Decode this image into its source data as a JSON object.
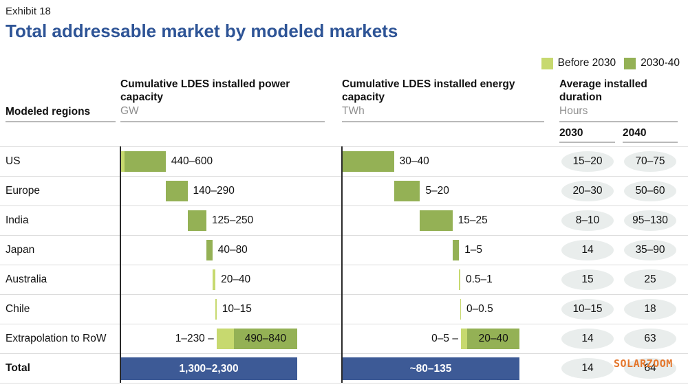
{
  "exhibit_label": "Exhibit 18",
  "title": "Total addressable market by modeled markets",
  "legend": [
    {
      "label": "Before 2030",
      "color": "#c7d96f"
    },
    {
      "label": "2030-40",
      "color": "#94b155"
    }
  ],
  "header": {
    "regions": "Modeled regions",
    "power_title": "Cumulative LDES installed power capacity",
    "power_unit": "GW",
    "energy_title": "Cumulative LDES installed energy capacity",
    "energy_unit": "TWh",
    "duration_title": "Average installed duration",
    "duration_unit": "Hours",
    "duration_year_1": "2030",
    "duration_year_2": "2040"
  },
  "watermark": "SOLARZOOM",
  "colors": {
    "title": "#2e5496",
    "before_2030": "#c7d96f",
    "period_2030_40": "#94b155",
    "total_bar": "#3d5a96",
    "oval_bg": "#e9edec",
    "watermark": "#e4762b"
  },
  "chart_data": {
    "type": "waterfall",
    "charts": {
      "power": {
        "title": "Cumulative LDES installed power capacity",
        "unit": "GW",
        "scale_max": 2345
      },
      "energy": {
        "title": "Cumulative LDES installed energy capacity",
        "unit": "TWh",
        "scale_max": 136.5
      }
    },
    "legend_entries": [
      "Before 2030",
      "2030-40"
    ],
    "rows": [
      {
        "region": "US",
        "power": {
          "label": "440–600",
          "start": 0,
          "segments": [
            {
              "period": "before_2030",
              "value": 55
            },
            {
              "period": "p2030_40",
              "value": 545
            }
          ]
        },
        "energy": {
          "label": "30–40",
          "start": 0,
          "segments": [
            {
              "period": "p2030_40",
              "value": 40
            }
          ]
        },
        "duration_2030": "15–20",
        "duration_2040": "70–75"
      },
      {
        "region": "Europe",
        "power": {
          "label": "140–290",
          "start": 600,
          "segments": [
            {
              "period": "p2030_40",
              "value": 290
            }
          ]
        },
        "energy": {
          "label": "5–20",
          "start": 40,
          "segments": [
            {
              "period": "p2030_40",
              "value": 20
            }
          ]
        },
        "duration_2030": "20–30",
        "duration_2040": "50–60"
      },
      {
        "region": "India",
        "power": {
          "label": "125–250",
          "start": 890,
          "segments": [
            {
              "period": "p2030_40",
              "value": 250
            }
          ]
        },
        "energy": {
          "label": "15–25",
          "start": 60,
          "segments": [
            {
              "period": "p2030_40",
              "value": 25
            }
          ]
        },
        "duration_2030": "8–10",
        "duration_2040": "95–130"
      },
      {
        "region": "Japan",
        "power": {
          "label": "40–80",
          "start": 1140,
          "segments": [
            {
              "period": "p2030_40",
              "value": 80
            }
          ]
        },
        "energy": {
          "label": "1–5",
          "start": 85,
          "segments": [
            {
              "period": "p2030_40",
              "value": 5
            }
          ]
        },
        "duration_2030": "14",
        "duration_2040": "35–90"
      },
      {
        "region": "Australia",
        "power": {
          "label": "20–40",
          "start": 1220,
          "segments": [
            {
              "period": "before_2030",
              "value": 40
            }
          ]
        },
        "energy": {
          "label": "0.5–1",
          "start": 90,
          "segments": [
            {
              "period": "before_2030",
              "value": 1
            }
          ]
        },
        "duration_2030": "15",
        "duration_2040": "25"
      },
      {
        "region": "Chile",
        "power": {
          "label": "10–15",
          "start": 1260,
          "segments": [
            {
              "period": "before_2030",
              "value": 15
            }
          ]
        },
        "energy": {
          "label": "0–0.5",
          "start": 91,
          "segments": [
            {
              "period": "before_2030",
              "value": 0.5
            }
          ]
        },
        "duration_2030": "10–15",
        "duration_2040": "18"
      },
      {
        "region": "Extrapolation to RoW",
        "power": {
          "pre_label": "1–230 –",
          "label": "490–840",
          "label_pos": "inside",
          "start": 1275,
          "segments": [
            {
              "period": "before_2030",
              "value": 230
            },
            {
              "period": "p2030_40",
              "value": 840
            }
          ]
        },
        "energy": {
          "pre_label": "0–5 –",
          "label": "20–40",
          "label_pos": "inside",
          "start": 91.5,
          "segments": [
            {
              "period": "before_2030",
              "value": 5
            },
            {
              "period": "p2030_40",
              "value": 40
            }
          ]
        },
        "duration_2030": "14",
        "duration_2040": "63"
      },
      {
        "region": "Total",
        "is_total": true,
        "power": {
          "label": "1,300–2,300"
        },
        "energy": {
          "label": "~80–135"
        },
        "duration_2030": "14",
        "duration_2040": "64"
      }
    ]
  }
}
